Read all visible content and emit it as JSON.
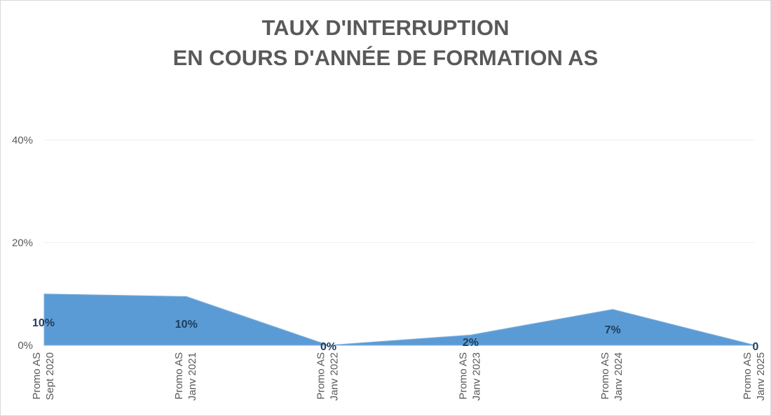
{
  "chart_data": {
    "type": "area",
    "title_lines": [
      "TAUX D'INTERRUPTION",
      "EN COURS D'ANNÉE DE FORMATION AS"
    ],
    "categories": [
      [
        "Promo AS",
        "Sept 2020"
      ],
      [
        "Promo AS",
        "Janv 2021"
      ],
      [
        "Promo AS",
        "Janv 2022"
      ],
      [
        "Promo AS",
        "Janv 2023"
      ],
      [
        "Promo AS",
        "Janv 2024"
      ],
      [
        "Promo AS",
        "Janv 2025"
      ]
    ],
    "values": [
      10,
      9.5,
      0,
      2,
      7,
      0
    ],
    "data_labels": [
      "10%",
      "10%",
      "0%",
      "2%",
      "7%",
      "0"
    ],
    "y_ticks": [
      {
        "value": 0,
        "label": "0%"
      },
      {
        "value": 20,
        "label": "20%"
      },
      {
        "value": 40,
        "label": "40%"
      }
    ],
    "ylim": [
      0,
      40
    ],
    "grid": true,
    "legend": "none",
    "colors": {
      "area_fill": "#5b9bd5",
      "area_edge": "#7fb0de",
      "gridline": "#efefef",
      "axis_text": "#595959",
      "title_text": "#595959",
      "data_label_text": "#1f3d5c"
    }
  }
}
